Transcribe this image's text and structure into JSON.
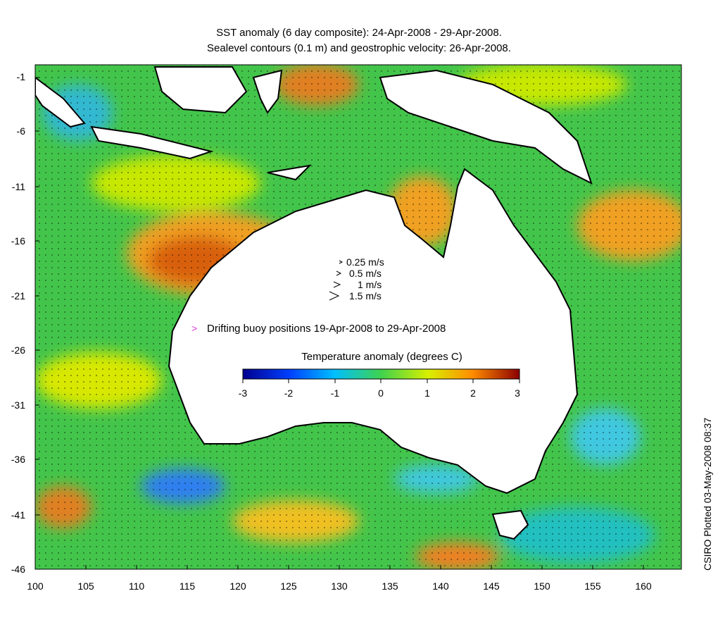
{
  "title_line1": "SST anomaly (6 day composite): 24-Apr-2008 - 29-Apr-2008.",
  "title_line2": "Sealevel contours (0.1 m) and geostrophic velocity: 26-Apr-2008.",
  "y_ticks": [
    "-1",
    "-6",
    "-11",
    "-16",
    "-21",
    "-26",
    "-31",
    "-36",
    "-41",
    "-46"
  ],
  "x_ticks": [
    "100",
    "105",
    "110",
    "115",
    "120",
    "125",
    "130",
    "135",
    "140",
    "145",
    "150",
    "155",
    "160"
  ],
  "velocity_legend": [
    "0.25 m/s",
    "0.5 m/s",
    "1 m/s",
    "1.5 m/s"
  ],
  "buoy_legend": {
    "marker": ">",
    "label": "Drifting buoy positions 19-Apr-2008 to 29-Apr-2008",
    "color": "#e23ad9"
  },
  "colorbar": {
    "title": "Temperature anomaly (degrees C)",
    "ticks": [
      "-3",
      "-2",
      "-1",
      "0",
      "1",
      "2",
      "3"
    ],
    "colors": [
      "#00008f",
      "#0040ff",
      "#00bfff",
      "#3fd24e",
      "#d8f000",
      "#ff8c00",
      "#8b0000"
    ]
  },
  "credit": "CSIRO Plotted 03-May-2008 08:37"
}
